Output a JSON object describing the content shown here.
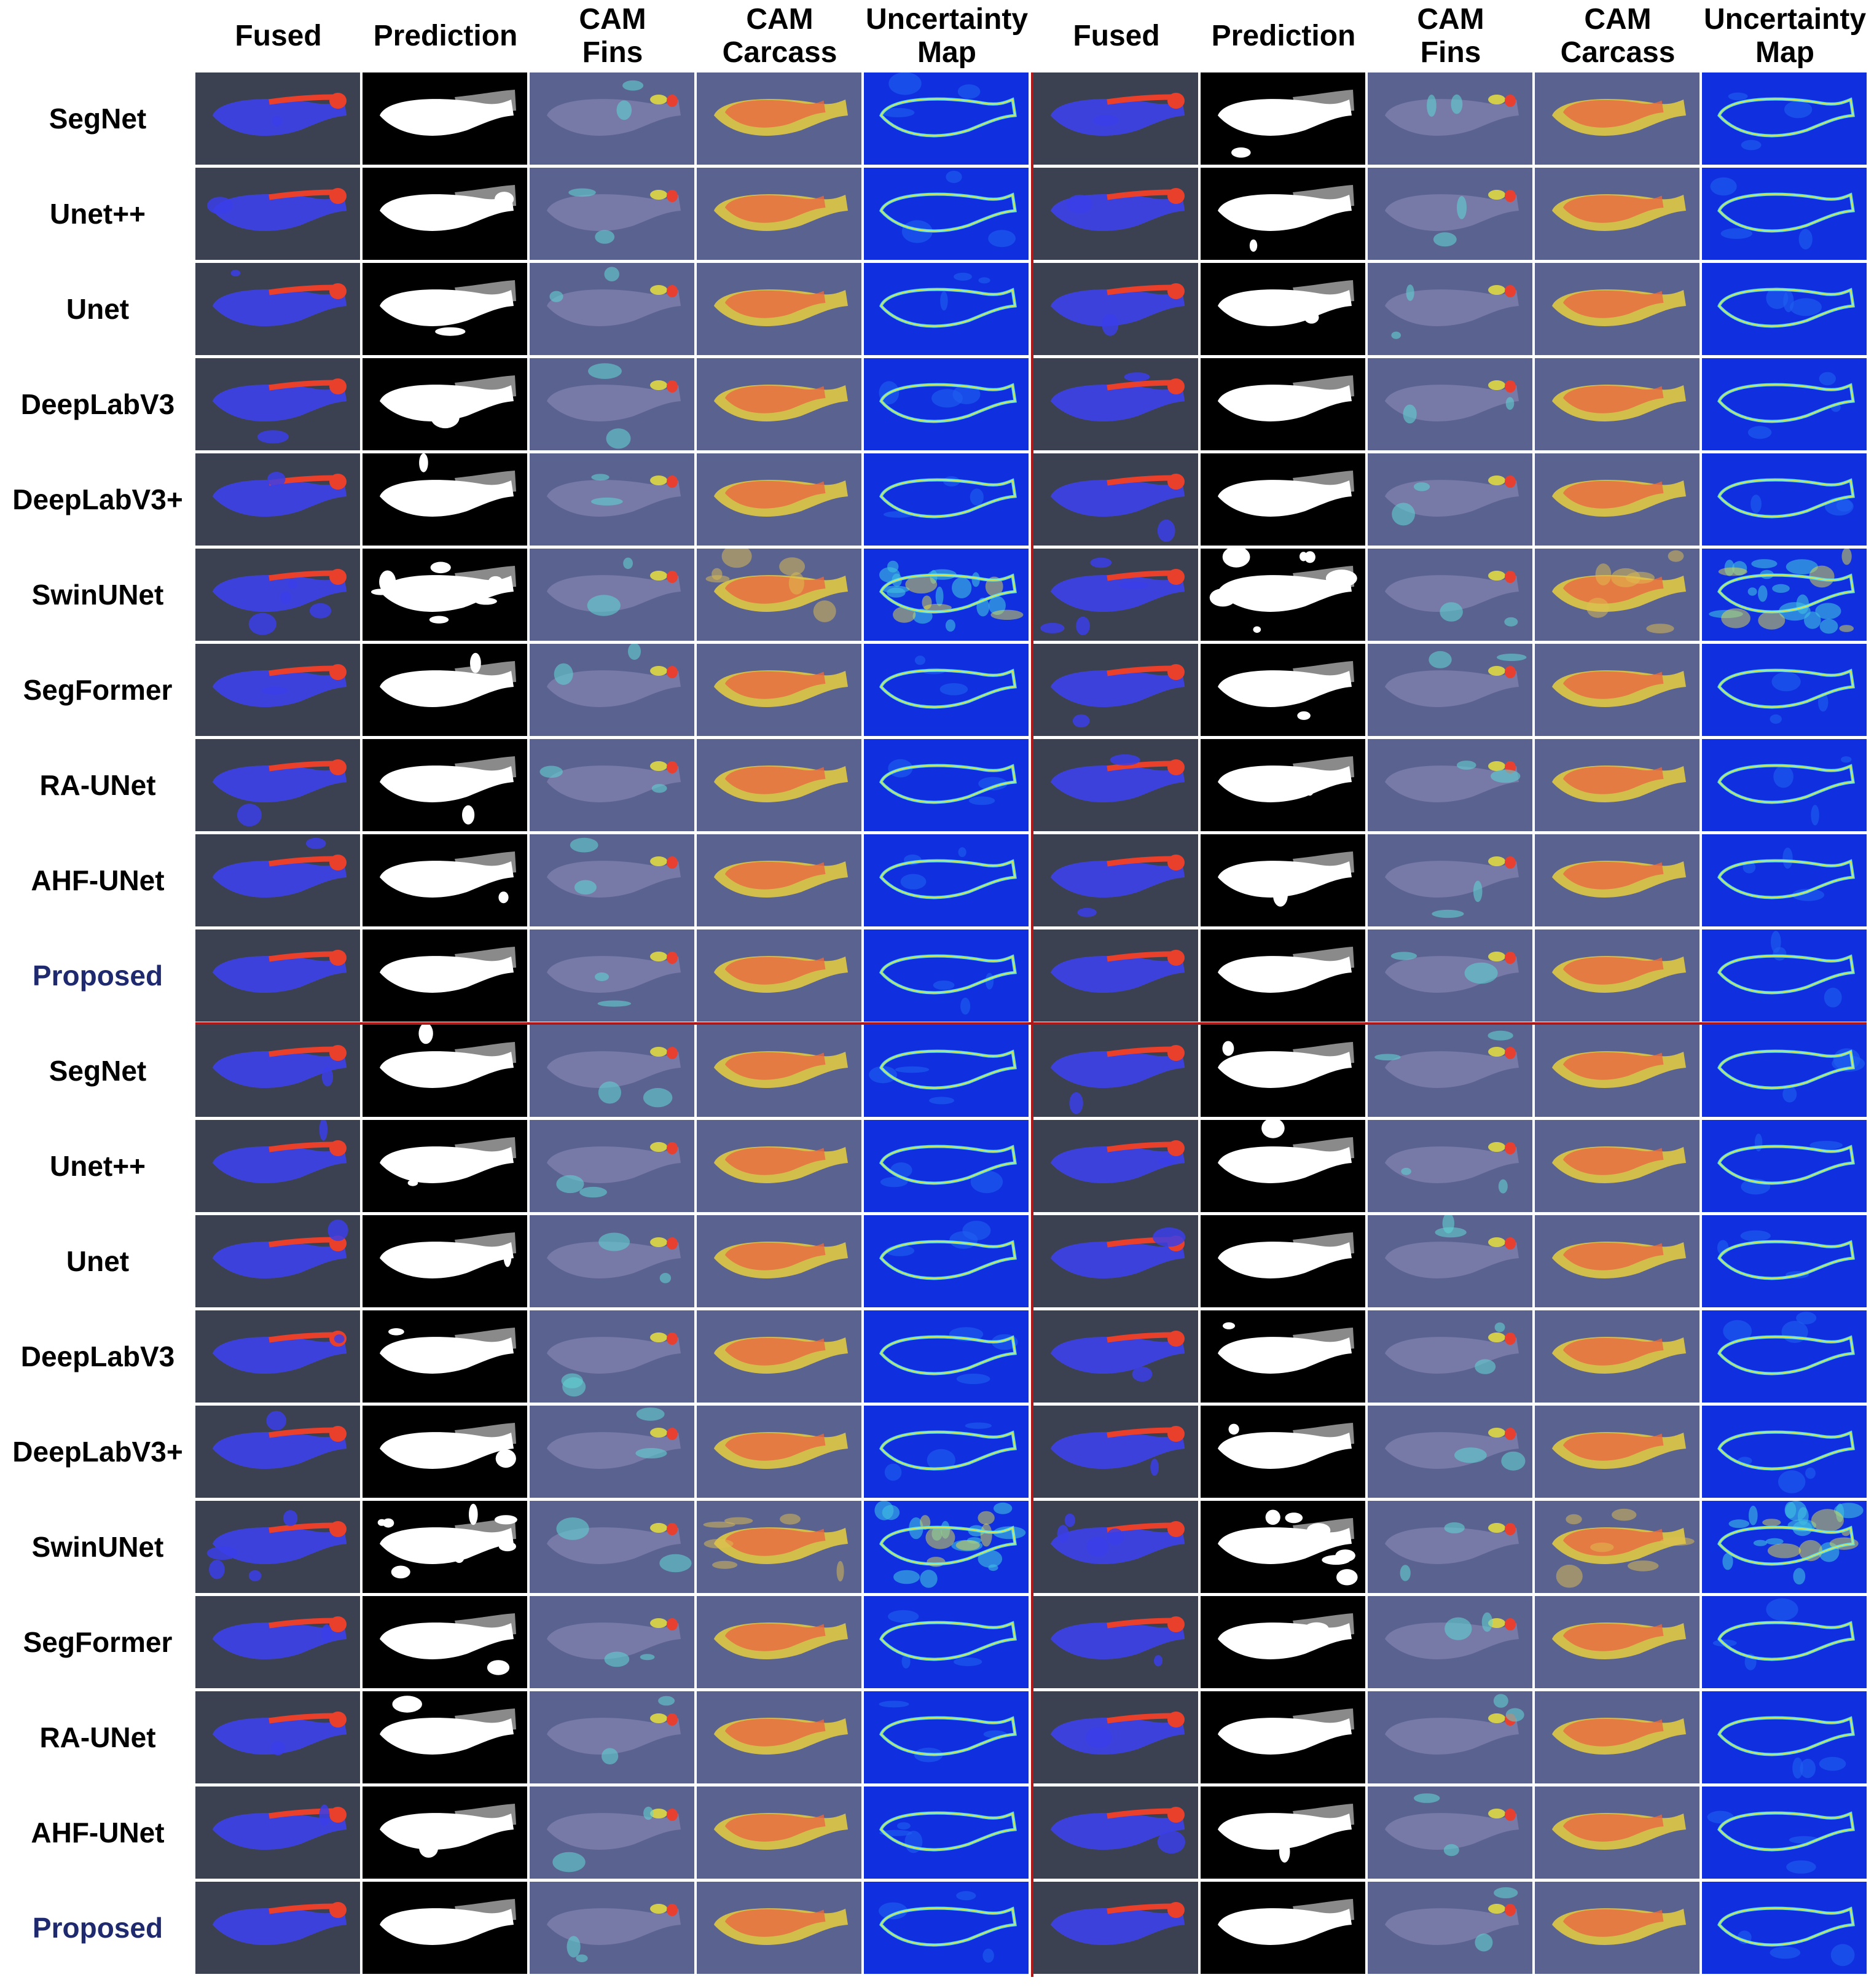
{
  "columns": [
    "Fused",
    "Prediction",
    "CAM\nFins",
    "CAM\nCarcass",
    "Uncertainty\nMap"
  ],
  "panel_header_groups": [
    "left",
    "right"
  ],
  "blocks": [
    {
      "name": "top",
      "rows": [
        "SegNet",
        "Unet++",
        "Unet",
        "DeepLabV3",
        "DeepLabV3+",
        "SwinUNet",
        "SegFormer",
        "RA-UNet",
        "AHF-UNet",
        "Proposed"
      ]
    },
    {
      "name": "bottom",
      "rows": [
        "SegNet",
        "Unet++",
        "Unet",
        "DeepLabV3",
        "DeepLabV3+",
        "SwinUNet",
        "SegFormer",
        "RA-UNet",
        "AHF-UNet",
        "Proposed"
      ]
    }
  ],
  "highlight_row": "Proposed",
  "colors": {
    "highlight_label": "#1f2a6e",
    "divider": "#b01818",
    "carcass_overlay": "#3a3ee8",
    "fins_overlay": "#e8402a",
    "mask_fg": "#ffffff",
    "mask_fins": "#8a8a8a",
    "mask_bg": "#000000",
    "uncertainty_bg": "#1030e0"
  }
}
